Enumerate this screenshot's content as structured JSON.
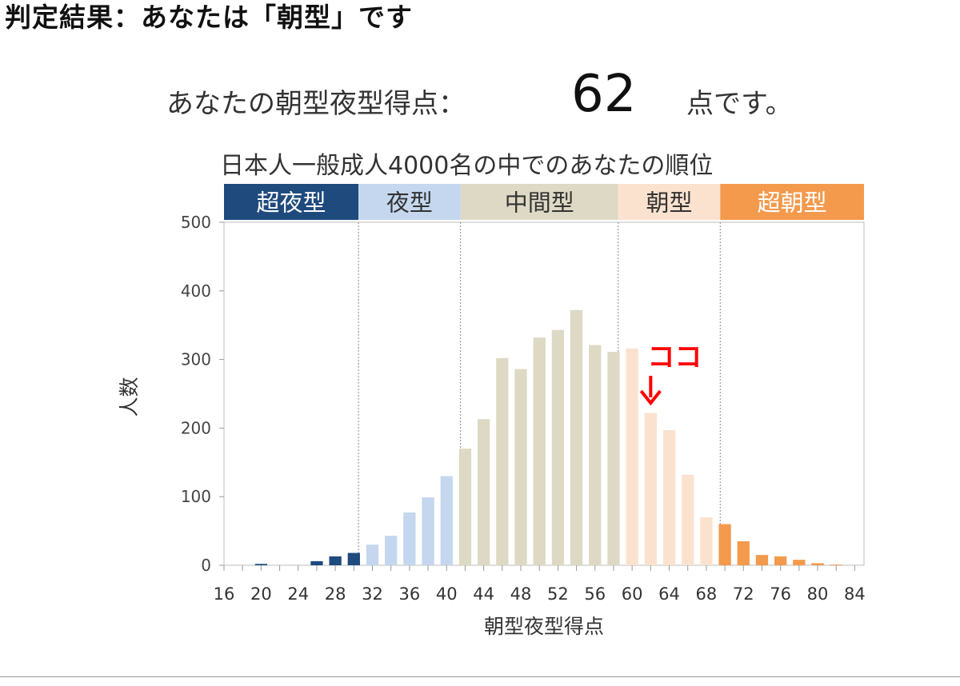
{
  "header": {
    "title": "判定結果：あなたは「朝型」です"
  },
  "score": {
    "prefix": "あなたの朝型夜型得点：",
    "value": "62",
    "suffix": "点です。"
  },
  "chart_data": {
    "type": "bar",
    "title": "日本人一般成人4000名の中でのあなたの順位",
    "xlabel": "朝型夜型得点",
    "ylabel": "人数",
    "xlim": [
      16,
      85
    ],
    "ylim": [
      0,
      500
    ],
    "yticks": [
      0,
      100,
      200,
      300,
      400,
      500
    ],
    "xticks": [
      16,
      20,
      24,
      28,
      32,
      36,
      40,
      44,
      48,
      52,
      56,
      60,
      64,
      68,
      72,
      76,
      80,
      84
    ],
    "grid": false,
    "bins": [
      {
        "x": 20,
        "value": 2,
        "category": "超夜型"
      },
      {
        "x": 26,
        "value": 6,
        "category": "超夜型"
      },
      {
        "x": 28,
        "value": 13,
        "category": "超夜型"
      },
      {
        "x": 30,
        "value": 18,
        "category": "超夜型"
      },
      {
        "x": 32,
        "value": 30,
        "category": "夜型"
      },
      {
        "x": 34,
        "value": 43,
        "category": "夜型"
      },
      {
        "x": 36,
        "value": 77,
        "category": "夜型"
      },
      {
        "x": 38,
        "value": 99,
        "category": "夜型"
      },
      {
        "x": 40,
        "value": 130,
        "category": "夜型"
      },
      {
        "x": 42,
        "value": 170,
        "category": "中間型"
      },
      {
        "x": 44,
        "value": 213,
        "category": "中間型"
      },
      {
        "x": 46,
        "value": 302,
        "category": "中間型"
      },
      {
        "x": 48,
        "value": 286,
        "category": "中間型"
      },
      {
        "x": 50,
        "value": 332,
        "category": "中間型"
      },
      {
        "x": 52,
        "value": 343,
        "category": "中間型"
      },
      {
        "x": 54,
        "value": 372,
        "category": "中間型"
      },
      {
        "x": 56,
        "value": 321,
        "category": "中間型"
      },
      {
        "x": 58,
        "value": 311,
        "category": "中間型"
      },
      {
        "x": 60,
        "value": 316,
        "category": "朝型"
      },
      {
        "x": 62,
        "value": 222,
        "category": "朝型"
      },
      {
        "x": 64,
        "value": 197,
        "category": "朝型"
      },
      {
        "x": 66,
        "value": 132,
        "category": "朝型"
      },
      {
        "x": 68,
        "value": 70,
        "category": "朝型"
      },
      {
        "x": 70,
        "value": 60,
        "category": "超朝型"
      },
      {
        "x": 72,
        "value": 35,
        "category": "超朝型"
      },
      {
        "x": 74,
        "value": 15,
        "category": "超朝型"
      },
      {
        "x": 76,
        "value": 13,
        "category": "超朝型"
      },
      {
        "x": 78,
        "value": 8,
        "category": "超朝型"
      },
      {
        "x": 80,
        "value": 3,
        "category": "超朝型"
      },
      {
        "x": 82,
        "value": 1,
        "category": "超朝型"
      }
    ],
    "categories": [
      {
        "name": "超夜型",
        "range": [
          16,
          30
        ],
        "color": "#1f4a7d",
        "label_color": "#ffffff"
      },
      {
        "name": "夜型",
        "range": [
          31,
          41
        ],
        "color": "#c5d7ee",
        "label_color": "#333333"
      },
      {
        "name": "中間型",
        "range": [
          42,
          58
        ],
        "color": "#ddd9c4",
        "label_color": "#333333"
      },
      {
        "name": "朝型",
        "range": [
          59,
          69
        ],
        "color": "#fbe2cf",
        "label_color": "#333333"
      },
      {
        "name": "超朝型",
        "range": [
          70,
          85
        ],
        "color": "#f39a4d",
        "label_color": "#ffffff"
      }
    ],
    "annotation": {
      "text": "ココ",
      "x": 62,
      "color": "#ff0000"
    }
  }
}
